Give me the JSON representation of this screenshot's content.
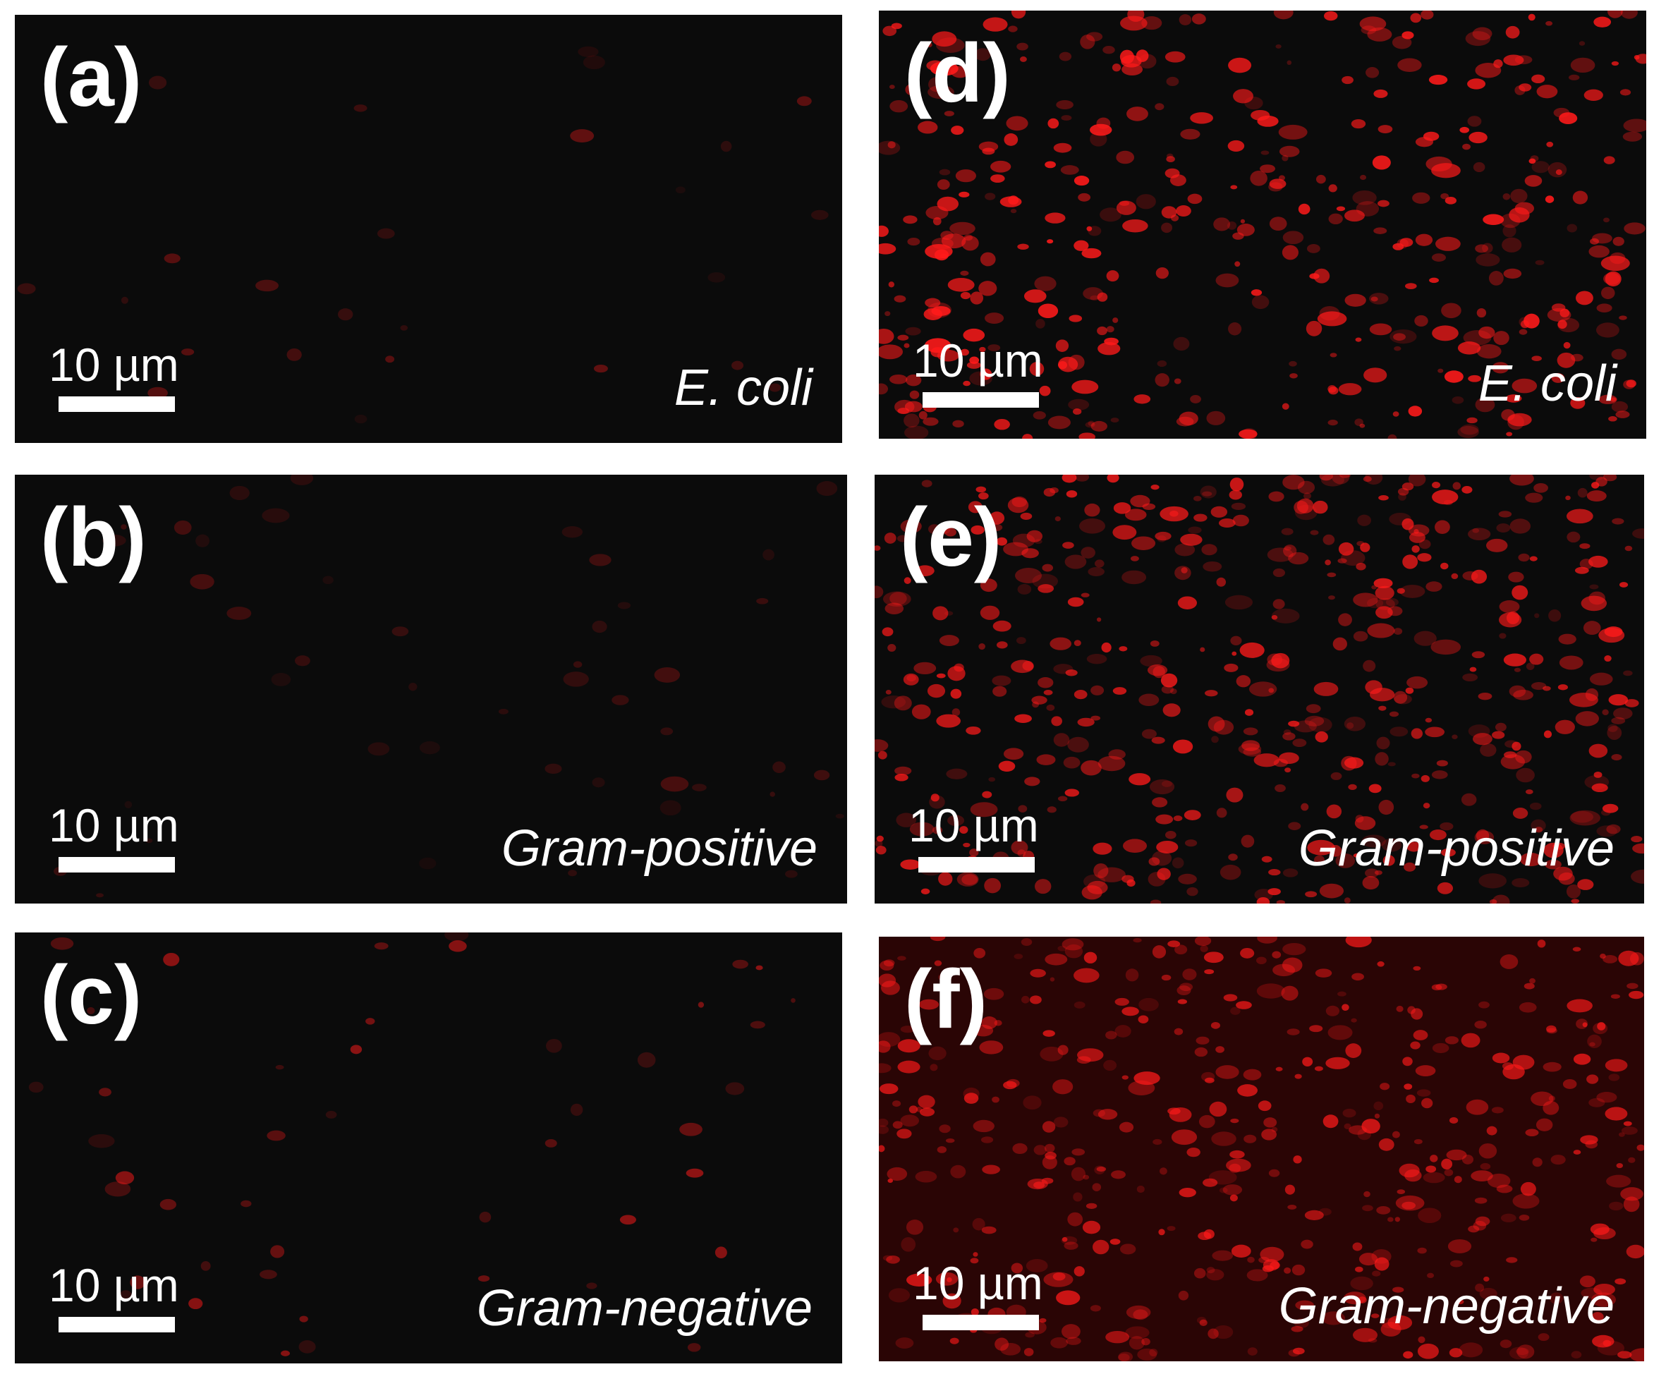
{
  "panels": [
    {
      "label": "(a)",
      "scale_bar": "10 µm",
      "sample": "E. coli"
    },
    {
      "label": "(b)",
      "scale_bar": "10 µm",
      "sample": "Gram-positive"
    },
    {
      "label": "(c)",
      "scale_bar": "10 µm",
      "sample": "Gram-negative"
    },
    {
      "label": "(d)",
      "scale_bar": "10 µm",
      "sample": "E. coli"
    },
    {
      "label": "(e)",
      "scale_bar": "10 µm",
      "sample": "Gram-positive"
    },
    {
      "label": "(f)",
      "scale_bar": "10 µm",
      "sample": "Gram-negative"
    }
  ]
}
